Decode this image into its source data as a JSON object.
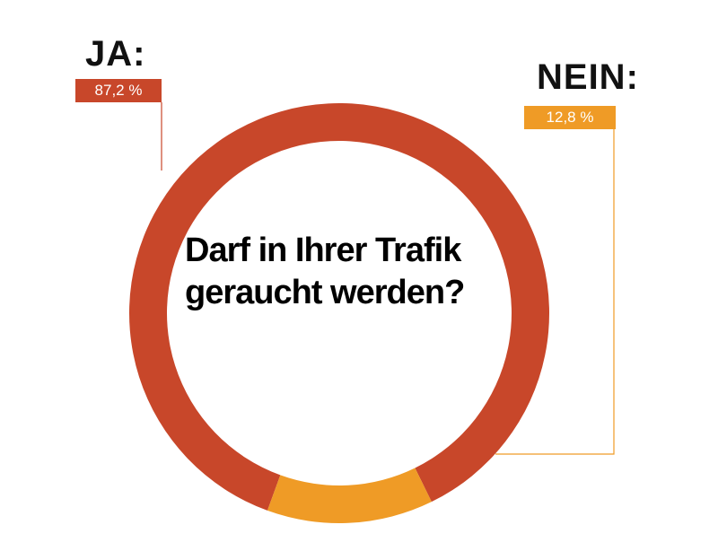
{
  "chart_data": {
    "type": "pie",
    "variant": "donut",
    "title": "Darf in Ihrer Trafik geraucht werden?",
    "slices": [
      {
        "label": "JA:",
        "value": 87.2,
        "value_label": "87,2 %",
        "color": "#c8472a"
      },
      {
        "label": "NEIN:",
        "value": 12.8,
        "value_label": "12,8 %",
        "color": "#ef9b26"
      }
    ]
  },
  "colors": {
    "background": "#ffffff",
    "text": "#111111"
  }
}
